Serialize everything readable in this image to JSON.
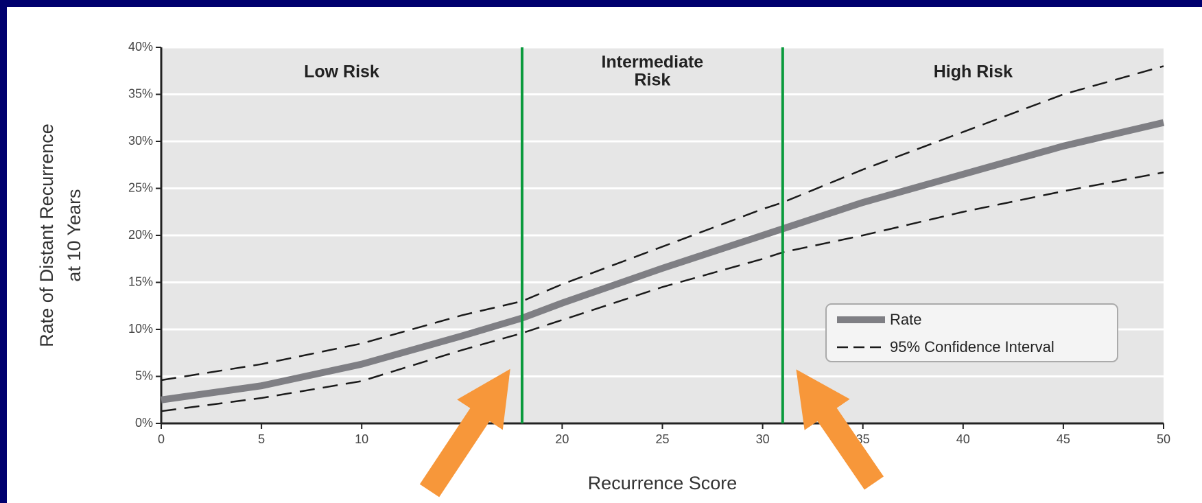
{
  "chart_data": {
    "type": "line",
    "x_label": "Recurrence Score",
    "y_label": [
      "Rate of Distant Recurrence",
      "at 10 Years"
    ],
    "x": [
      0,
      5,
      10,
      15,
      18,
      20,
      25,
      30,
      31,
      35,
      40,
      45,
      50
    ],
    "series": [
      {
        "name": "Rate",
        "color": "#7f7f84",
        "style": "solid",
        "values": [
          2.5,
          4,
          6.3,
          9.3,
          11.2,
          12.8,
          16.5,
          20,
          20.7,
          23.5,
          26.5,
          29.5,
          32
        ]
      },
      {
        "name": "95% Confidence Interval",
        "color": "#1a1a1a",
        "style": "dashed",
        "upper": [
          4.6,
          6.3,
          8.5,
          11.5,
          13,
          14.8,
          18.8,
          22.8,
          23.5,
          27,
          31,
          35,
          38
        ],
        "lower": [
          1.3,
          2.7,
          4.5,
          7.8,
          9.6,
          11,
          14.5,
          17.5,
          18.2,
          20,
          22.5,
          24.7,
          26.7
        ]
      }
    ],
    "thresholds": [
      18,
      31
    ],
    "threshold_color": "#0a9a3c",
    "regions": [
      {
        "lines": [
          "Low Risk"
        ],
        "color": "#12a04a"
      },
      {
        "lines": [
          "Intermediate",
          "Risk"
        ],
        "color": "#f7941d"
      },
      {
        "lines": [
          "High Risk"
        ],
        "color": "#e0192e"
      }
    ],
    "xlim": [
      0,
      50
    ],
    "xticks": [
      0,
      5,
      10,
      20,
      25,
      30,
      35,
      40,
      45,
      50
    ],
    "ylim": [
      0,
      40
    ],
    "yticks": [
      {
        "value": 0,
        "label": "0%"
      },
      {
        "value": 5,
        "label": "5%"
      },
      {
        "value": 10,
        "label": "10%"
      },
      {
        "value": 15,
        "label": "15%"
      },
      {
        "value": 20,
        "label": "20%"
      },
      {
        "value": 25,
        "label": "25%"
      },
      {
        "value": 30,
        "label": "30%"
      },
      {
        "value": 35,
        "label": "35%"
      },
      {
        "value": 40,
        "label": "40%"
      }
    ],
    "grid": true
  }
}
